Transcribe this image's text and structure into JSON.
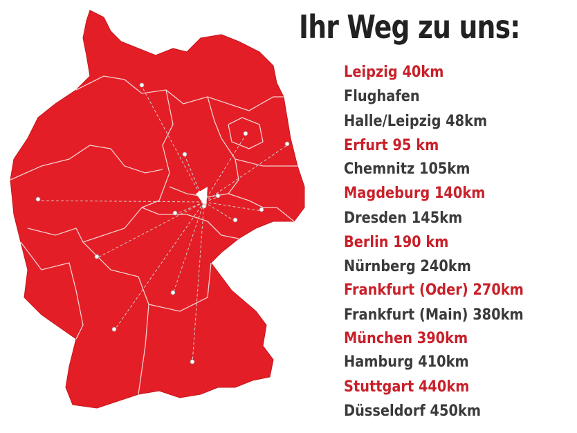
{
  "title": "Ihr Weg zu uns:",
  "destinations": [
    "Leipzig 40km",
    "Flughafen",
    "Halle/Leipzig 48km",
    "Erfurt 95 km",
    "Chemnitz 105km",
    "Magdeburg 140km",
    "Dresden 145km",
    "Berlin 190 km",
    "Nürnberg 240km",
    "Frankfurt (Oder) 270km",
    "Frankfurt (Main) 380km",
    "München 390km",
    "Hamburg 410km",
    "Stuttgart 440km",
    "Düsseldorf 450km"
  ]
}
